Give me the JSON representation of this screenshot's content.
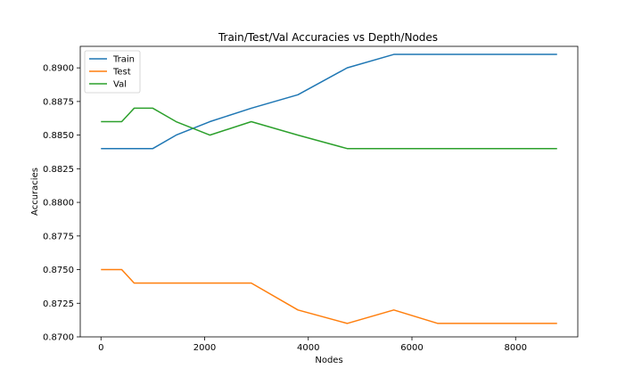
{
  "chart_data": {
    "type": "line",
    "title": "Train/Test/Val Accuracies vs Depth/Nodes",
    "xlabel": "Nodes",
    "ylabel": "Accuracies",
    "xlim": [
      -400,
      9200
    ],
    "ylim": [
      0.87,
      0.8916
    ],
    "xticks": [
      0,
      2000,
      4000,
      6000,
      8000
    ],
    "xtick_labels": [
      "0",
      "2000",
      "4000",
      "6000",
      "8000"
    ],
    "yticks": [
      0.87,
      0.8725,
      0.875,
      0.8775,
      0.88,
      0.8825,
      0.885,
      0.8875,
      0.89
    ],
    "ytick_labels": [
      "0.8700",
      "0.8725",
      "0.8750",
      "0.8775",
      "0.8800",
      "0.8825",
      "0.8850",
      "0.8875",
      "0.8900"
    ],
    "grid": false,
    "legend_position": "top-left",
    "x": [
      0,
      400,
      640,
      1000,
      1450,
      2100,
      2900,
      3800,
      4750,
      5650,
      6500,
      8800
    ],
    "series": [
      {
        "name": "Train",
        "color": "#1f77b4",
        "values": [
          0.884,
          0.884,
          0.884,
          0.884,
          0.885,
          0.886,
          0.887,
          0.888,
          0.89,
          0.891,
          0.891,
          0.891
        ]
      },
      {
        "name": "Test",
        "color": "#ff7f0e",
        "values": [
          0.875,
          0.875,
          0.874,
          0.874,
          0.874,
          0.874,
          0.874,
          0.872,
          0.871,
          0.872,
          0.871,
          0.871
        ]
      },
      {
        "name": "Val",
        "color": "#2ca02c",
        "values": [
          0.886,
          0.886,
          0.887,
          0.887,
          0.886,
          0.885,
          0.886,
          0.885,
          0.884,
          0.884,
          0.884,
          0.884
        ]
      }
    ]
  }
}
